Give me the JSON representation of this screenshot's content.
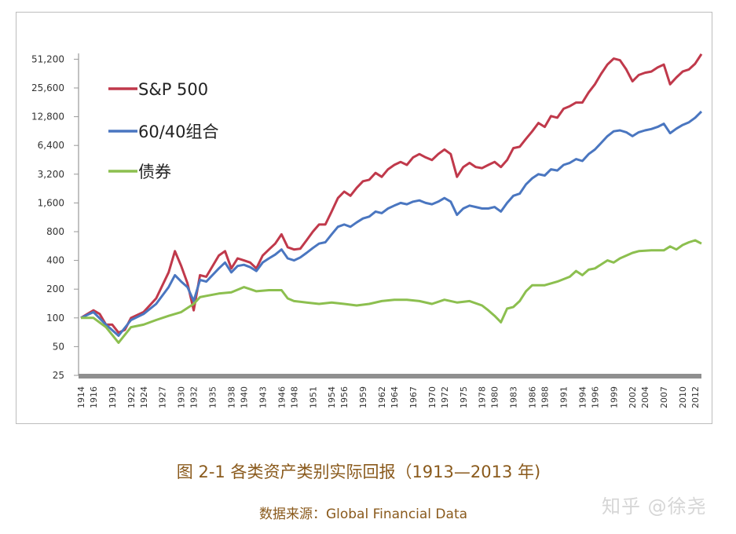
{
  "chart_data": {
    "type": "line",
    "title": "",
    "xlabel": "",
    "ylabel": "",
    "y_scale": "log2",
    "ylim": [
      25,
      51200
    ],
    "y_ticks": [
      "25",
      "50",
      "100",
      "200",
      "400",
      "800",
      "1,600",
      "3,200",
      "6,400",
      "12,800",
      "25,600",
      "51,200"
    ],
    "y_tick_values": [
      25,
      50,
      100,
      200,
      400,
      800,
      1600,
      3200,
      6400,
      12800,
      25600,
      51200
    ],
    "x_ticks": [
      "1914",
      "1916",
      "1919",
      "1922",
      "1924",
      "1927",
      "1930",
      "1932",
      "1935",
      "1938",
      "1940",
      "1943",
      "1946",
      "1948",
      "1951",
      "1954",
      "1956",
      "1959",
      "1962",
      "1964",
      "1967",
      "1970",
      "1972",
      "1975",
      "1978",
      "1980",
      "1983",
      "1986",
      "1988",
      "1991",
      "1994",
      "1996",
      "1999",
      "2002",
      "2004",
      "2007",
      "2010",
      "2012"
    ],
    "xlim": [
      1913.5,
      2013.5
    ],
    "grid": false,
    "legend_position": "top-left",
    "series": [
      {
        "name": "S&P 500",
        "color": "#c0394b",
        "x": [
          1914,
          1916,
          1917,
          1918,
          1919,
          1920,
          1921,
          1922,
          1924,
          1926,
          1928,
          1929,
          1930,
          1931,
          1932,
          1933,
          1934,
          1936,
          1937,
          1938,
          1939,
          1940,
          1941,
          1942,
          1943,
          1944,
          1945,
          1946,
          1947,
          1948,
          1949,
          1950,
          1951,
          1952,
          1953,
          1954,
          1955,
          1956,
          1957,
          1958,
          1959,
          1960,
          1961,
          1962,
          1963,
          1964,
          1965,
          1966,
          1967,
          1968,
          1969,
          1970,
          1971,
          1972,
          1973,
          1974,
          1975,
          1976,
          1977,
          1978,
          1979,
          1980,
          1981,
          1982,
          1983,
          1984,
          1985,
          1986,
          1987,
          1988,
          1989,
          1990,
          1991,
          1992,
          1993,
          1994,
          1995,
          1996,
          1997,
          1998,
          1999,
          2000,
          2001,
          2002,
          2003,
          2004,
          2005,
          2006,
          2007,
          2008,
          2009,
          2010,
          2011,
          2012,
          2013
        ],
        "values": [
          100,
          120,
          110,
          85,
          85,
          70,
          75,
          100,
          115,
          160,
          300,
          500,
          350,
          230,
          120,
          280,
          270,
          450,
          500,
          330,
          420,
          400,
          380,
          330,
          450,
          520,
          600,
          750,
          550,
          520,
          530,
          650,
          800,
          950,
          950,
          1300,
          1800,
          2100,
          1900,
          2300,
          2700,
          2800,
          3300,
          3000,
          3600,
          4000,
          4300,
          4000,
          4800,
          5200,
          4800,
          4500,
          5200,
          5800,
          5200,
          3000,
          3800,
          4200,
          3800,
          3700,
          4000,
          4300,
          3800,
          4500,
          6000,
          6200,
          7500,
          9000,
          11000,
          10000,
          13000,
          12500,
          15500,
          16500,
          18000,
          18000,
          23000,
          28000,
          36000,
          45000,
          52000,
          50000,
          40000,
          30000,
          35000,
          37000,
          38000,
          42000,
          45000,
          28000,
          33000,
          38000,
          40000,
          46000,
          58000
        ]
      },
      {
        "name": "60/40组合",
        "color": "#4a76c0",
        "x": [
          1914,
          1916,
          1918,
          1920,
          1922,
          1924,
          1926,
          1928,
          1929,
          1930,
          1931,
          1932,
          1933,
          1934,
          1936,
          1937,
          1938,
          1939,
          1940,
          1941,
          1942,
          1943,
          1944,
          1945,
          1946,
          1947,
          1948,
          1949,
          1950,
          1951,
          1952,
          1953,
          1954,
          1955,
          1956,
          1957,
          1958,
          1959,
          1960,
          1961,
          1962,
          1963,
          1964,
          1965,
          1966,
          1967,
          1968,
          1969,
          1970,
          1971,
          1972,
          1973,
          1974,
          1975,
          1976,
          1977,
          1978,
          1979,
          1980,
          1981,
          1982,
          1983,
          1984,
          1985,
          1986,
          1987,
          1988,
          1989,
          1990,
          1991,
          1992,
          1993,
          1994,
          1995,
          1996,
          1997,
          1998,
          1999,
          2000,
          2001,
          2002,
          2003,
          2004,
          2005,
          2006,
          2007,
          2008,
          2009,
          2010,
          2011,
          2012,
          2013
        ],
        "values": [
          100,
          115,
          85,
          65,
          95,
          110,
          140,
          210,
          280,
          240,
          210,
          150,
          250,
          240,
          330,
          380,
          300,
          350,
          360,
          340,
          310,
          380,
          420,
          460,
          520,
          420,
          400,
          430,
          480,
          540,
          600,
          620,
          750,
          900,
          950,
          900,
          1000,
          1100,
          1150,
          1300,
          1250,
          1400,
          1500,
          1600,
          1550,
          1650,
          1700,
          1600,
          1550,
          1650,
          1800,
          1650,
          1200,
          1400,
          1500,
          1450,
          1400,
          1400,
          1450,
          1300,
          1600,
          1900,
          2000,
          2500,
          2900,
          3200,
          3100,
          3600,
          3500,
          4000,
          4200,
          4600,
          4400,
          5200,
          5800,
          6800,
          8000,
          9000,
          9200,
          8800,
          8000,
          8800,
          9200,
          9500,
          10000,
          10800,
          8600,
          9600,
          10500,
          11200,
          12500,
          14500
        ]
      },
      {
        "name": "债券",
        "color": "#8cbf4f",
        "x": [
          1914,
          1916,
          1918,
          1920,
          1922,
          1924,
          1926,
          1928,
          1930,
          1932,
          1933,
          1934,
          1936,
          1938,
          1940,
          1941,
          1942,
          1944,
          1946,
          1947,
          1948,
          1950,
          1952,
          1954,
          1956,
          1958,
          1960,
          1962,
          1964,
          1966,
          1968,
          1970,
          1972,
          1974,
          1976,
          1978,
          1979,
          1980,
          1981,
          1982,
          1983,
          1984,
          1985,
          1986,
          1988,
          1990,
          1992,
          1993,
          1994,
          1995,
          1996,
          1998,
          1999,
          2000,
          2002,
          2003,
          2005,
          2007,
          2008,
          2009,
          2010,
          2011,
          2012,
          2013
        ],
        "values": [
          100,
          100,
          80,
          55,
          80,
          85,
          95,
          105,
          115,
          140,
          165,
          170,
          180,
          185,
          210,
          200,
          190,
          195,
          195,
          160,
          150,
          145,
          140,
          145,
          140,
          135,
          140,
          150,
          155,
          155,
          150,
          140,
          155,
          145,
          150,
          135,
          120,
          105,
          90,
          125,
          130,
          150,
          190,
          220,
          220,
          240,
          270,
          310,
          280,
          320,
          330,
          400,
          380,
          420,
          480,
          500,
          510,
          510,
          560,
          520,
          580,
          620,
          650,
          600
        ]
      }
    ]
  },
  "caption": {
    "title": "图 2-1 各类资产类别实际回报（1913—2013 年)",
    "source": "数据来源：Global Financial Data"
  },
  "watermark": "知乎 @徐尧"
}
